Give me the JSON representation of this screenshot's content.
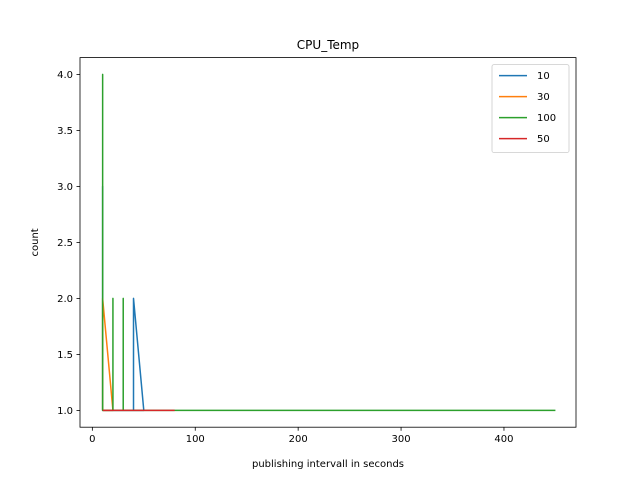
{
  "chart_data": {
    "type": "line",
    "title": "CPU_Temp",
    "xlabel": "publishing intervall in seconds",
    "ylabel": "count",
    "xlim": [
      -12,
      470
    ],
    "ylim": [
      0.85,
      4.15
    ],
    "xticks": [
      0,
      100,
      200,
      300,
      400
    ],
    "yticks": [
      1.0,
      1.5,
      2.0,
      2.5,
      3.0,
      3.5,
      4.0
    ],
    "xtick_labels": [
      "0",
      "100",
      "200",
      "300",
      "400"
    ],
    "ytick_labels": [
      "1.0",
      "1.5",
      "2.0",
      "2.5",
      "3.0",
      "3.5",
      "4.0"
    ],
    "grid": false,
    "legend_position": "top-right",
    "series": [
      {
        "name": "10",
        "color": "#1f77b4",
        "points": [
          [
            10,
            1
          ],
          [
            10,
            3
          ],
          [
            10,
            1
          ],
          [
            40,
            1
          ],
          [
            40,
            2
          ],
          [
            50,
            1
          ],
          [
            10,
            1
          ]
        ]
      },
      {
        "name": "30",
        "color": "#ff7f0e",
        "points": [
          [
            10,
            1
          ],
          [
            10,
            2
          ],
          [
            20,
            1
          ],
          [
            10,
            1
          ]
        ]
      },
      {
        "name": "100",
        "color": "#2ca02c",
        "points": [
          [
            10,
            1
          ],
          [
            10,
            4
          ],
          [
            10,
            1
          ],
          [
            20,
            1
          ],
          [
            20,
            2
          ],
          [
            20,
            1
          ],
          [
            30,
            1
          ],
          [
            30,
            2
          ],
          [
            30,
            1
          ],
          [
            450,
            1
          ]
        ]
      },
      {
        "name": "50",
        "color": "#d62728",
        "points": [
          [
            10,
            1
          ],
          [
            80,
            1
          ]
        ]
      }
    ]
  }
}
